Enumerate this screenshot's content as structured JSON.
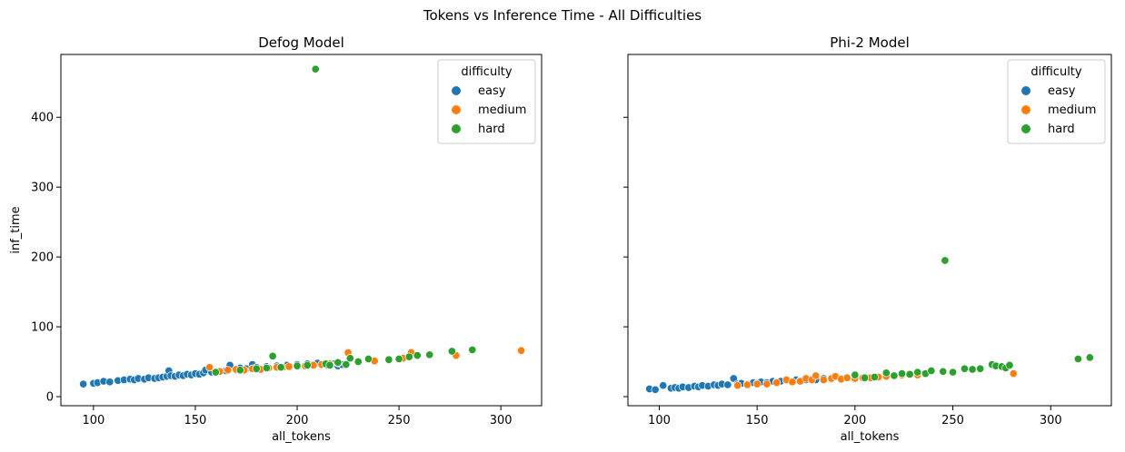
{
  "suptitle": "Tokens vs Inference Time - All Difficulties",
  "colors": {
    "easy": "#1f77b4",
    "medium": "#ff7f0e",
    "hard": "#2ca02c"
  },
  "chart_data": [
    {
      "type": "scatter",
      "title": "Defog Model",
      "xlabel": "all_tokens",
      "ylabel": "inf_time",
      "xlim": [
        84,
        320
      ],
      "ylim": [
        -13,
        490
      ],
      "xticks": [
        100,
        150,
        200,
        250,
        300
      ],
      "yticks": [
        0,
        100,
        200,
        300,
        400
      ],
      "sharey_hide_labels": false,
      "legend": {
        "title": "difficulty",
        "position": "top-right"
      },
      "series": [
        {
          "name": "easy",
          "color": "#1f77b4",
          "points": [
            [
              95,
              18
            ],
            [
              100,
              19
            ],
            [
              102,
              20
            ],
            [
              105,
              22
            ],
            [
              108,
              21
            ],
            [
              112,
              23
            ],
            [
              115,
              24
            ],
            [
              118,
              25
            ],
            [
              120,
              24
            ],
            [
              122,
              26
            ],
            [
              125,
              25
            ],
            [
              127,
              27
            ],
            [
              130,
              26
            ],
            [
              132,
              27
            ],
            [
              134,
              28
            ],
            [
              136,
              29
            ],
            [
              137,
              37
            ],
            [
              138,
              30
            ],
            [
              140,
              29
            ],
            [
              142,
              31
            ],
            [
              144,
              30
            ],
            [
              146,
              32
            ],
            [
              148,
              31
            ],
            [
              150,
              33
            ],
            [
              152,
              32
            ],
            [
              154,
              34
            ],
            [
              155,
              38
            ],
            [
              158,
              35
            ],
            [
              160,
              34
            ],
            [
              162,
              36
            ],
            [
              165,
              37
            ],
            [
              167,
              45
            ],
            [
              170,
              38
            ],
            [
              172,
              41
            ],
            [
              175,
              40
            ],
            [
              178,
              46
            ],
            [
              180,
              42
            ],
            [
              185,
              43
            ],
            [
              190,
              44
            ],
            [
              195,
              45
            ],
            [
              200,
              46
            ],
            [
              205,
              47
            ],
            [
              210,
              48
            ],
            [
              215,
              45
            ],
            [
              218,
              47
            ],
            [
              220,
              44
            ],
            [
              222,
              46
            ]
          ]
        },
        {
          "name": "medium",
          "color": "#ff7f0e",
          "points": [
            [
              157,
              42
            ],
            [
              162,
              36
            ],
            [
              166,
              38
            ],
            [
              170,
              39
            ],
            [
              174,
              38
            ],
            [
              178,
              40
            ],
            [
              182,
              39
            ],
            [
              186,
              41
            ],
            [
              190,
              42
            ],
            [
              193,
              42
            ],
            [
              196,
              43
            ],
            [
              200,
              44
            ],
            [
              204,
              44
            ],
            [
              208,
              45
            ],
            [
              212,
              46
            ],
            [
              216,
              47
            ],
            [
              220,
              48
            ],
            [
              225,
              63
            ],
            [
              230,
              50
            ],
            [
              238,
              51
            ],
            [
              245,
              52
            ],
            [
              252,
              55
            ],
            [
              256,
              63
            ],
            [
              278,
              59
            ],
            [
              310,
              66
            ]
          ]
        },
        {
          "name": "hard",
          "color": "#2ca02c",
          "points": [
            [
              160,
              35
            ],
            [
              172,
              38
            ],
            [
              180,
              40
            ],
            [
              185,
              41
            ],
            [
              188,
              58
            ],
            [
              192,
              42
            ],
            [
              200,
              44
            ],
            [
              205,
              45
            ],
            [
              209,
              469
            ],
            [
              214,
              47
            ],
            [
              216,
              45
            ],
            [
              220,
              49
            ],
            [
              224,
              46
            ],
            [
              226,
              55
            ],
            [
              230,
              50
            ],
            [
              235,
              54
            ],
            [
              245,
              53
            ],
            [
              250,
              54
            ],
            [
              255,
              57
            ],
            [
              259,
              59
            ],
            [
              265,
              60
            ],
            [
              276,
              65
            ],
            [
              286,
              67
            ]
          ]
        }
      ]
    },
    {
      "type": "scatter",
      "title": "Phi-2 Model",
      "xlabel": "all_tokens",
      "ylabel": "",
      "xlim": [
        84,
        331
      ],
      "ylim": [
        -13,
        490
      ],
      "xticks": [
        100,
        150,
        200,
        250,
        300
      ],
      "yticks": [
        0,
        100,
        200,
        300,
        400
      ],
      "sharey_hide_labels": true,
      "legend": {
        "title": "difficulty",
        "position": "top-right"
      },
      "series": [
        {
          "name": "easy",
          "color": "#1f77b4",
          "points": [
            [
              95,
              11
            ],
            [
              98,
              10
            ],
            [
              102,
              16
            ],
            [
              106,
              12
            ],
            [
              108,
              13
            ],
            [
              110,
              12
            ],
            [
              112,
              14
            ],
            [
              115,
              13
            ],
            [
              118,
              15
            ],
            [
              120,
              14
            ],
            [
              122,
              16
            ],
            [
              125,
              15
            ],
            [
              128,
              17
            ],
            [
              130,
              16
            ],
            [
              132,
              18
            ],
            [
              135,
              17
            ],
            [
              138,
              26
            ],
            [
              140,
              18
            ],
            [
              142,
              19
            ],
            [
              145,
              18
            ],
            [
              148,
              20
            ],
            [
              150,
              19
            ],
            [
              152,
              21
            ],
            [
              155,
              20
            ],
            [
              158,
              22
            ],
            [
              160,
              21
            ],
            [
              162,
              22
            ],
            [
              165,
              23
            ],
            [
              168,
              22
            ],
            [
              170,
              24
            ],
            [
              172,
              23
            ],
            [
              175,
              24
            ],
            [
              178,
              25
            ],
            [
              180,
              24
            ],
            [
              184,
              26
            ],
            [
              188,
              25
            ]
          ]
        },
        {
          "name": "medium",
          "color": "#ff7f0e",
          "points": [
            [
              140,
              16
            ],
            [
              145,
              17
            ],
            [
              150,
              18
            ],
            [
              155,
              18
            ],
            [
              160,
              20
            ],
            [
              165,
              24
            ],
            [
              168,
              21
            ],
            [
              172,
              22
            ],
            [
              175,
              26
            ],
            [
              178,
              24
            ],
            [
              180,
              30
            ],
            [
              184,
              24
            ],
            [
              188,
              26
            ],
            [
              190,
              29
            ],
            [
              193,
              25
            ],
            [
              196,
              27
            ],
            [
              200,
              26
            ],
            [
              204,
              27
            ],
            [
              208,
              27
            ],
            [
              212,
              28
            ],
            [
              216,
              29
            ],
            [
              220,
              30
            ],
            [
              224,
              31
            ],
            [
              228,
              32
            ],
            [
              232,
              31
            ],
            [
              236,
              33
            ],
            [
              281,
              33
            ]
          ]
        },
        {
          "name": "hard",
          "color": "#2ca02c",
          "points": [
            [
              200,
              31
            ],
            [
              205,
              27
            ],
            [
              210,
              28
            ],
            [
              216,
              34
            ],
            [
              220,
              30
            ],
            [
              224,
              33
            ],
            [
              228,
              32
            ],
            [
              232,
              35
            ],
            [
              236,
              33
            ],
            [
              239,
              37
            ],
            [
              245,
              36
            ],
            [
              246,
              195
            ],
            [
              250,
              35
            ],
            [
              256,
              40
            ],
            [
              260,
              39
            ],
            [
              264,
              40
            ],
            [
              270,
              46
            ],
            [
              272,
              44
            ],
            [
              275,
              43
            ],
            [
              277,
              41
            ],
            [
              279,
              45
            ],
            [
              314,
              54
            ],
            [
              320,
              56
            ]
          ]
        }
      ]
    }
  ]
}
